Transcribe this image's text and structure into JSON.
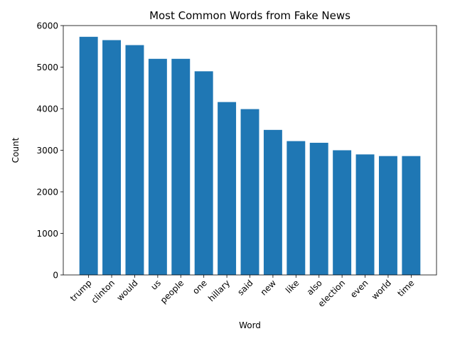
{
  "chart_data": {
    "type": "bar",
    "title": "Most Common Words from Fake News",
    "xlabel": "Word",
    "ylabel": "Count",
    "categories": [
      "trump",
      "clinton",
      "would",
      "us",
      "people",
      "one",
      "hillary",
      "said",
      "new",
      "like",
      "also",
      "election",
      "even",
      "world",
      "time"
    ],
    "values": [
      5730,
      5650,
      5530,
      5200,
      5200,
      4900,
      4160,
      3990,
      3490,
      3220,
      3180,
      3000,
      2900,
      2860,
      2860
    ],
    "ylim": [
      0,
      6000
    ],
    "yticks": [
      0,
      1000,
      2000,
      3000,
      4000,
      5000,
      6000
    ],
    "bar_color": "#1f77b4",
    "grid": false,
    "xtick_rotation": 45
  }
}
